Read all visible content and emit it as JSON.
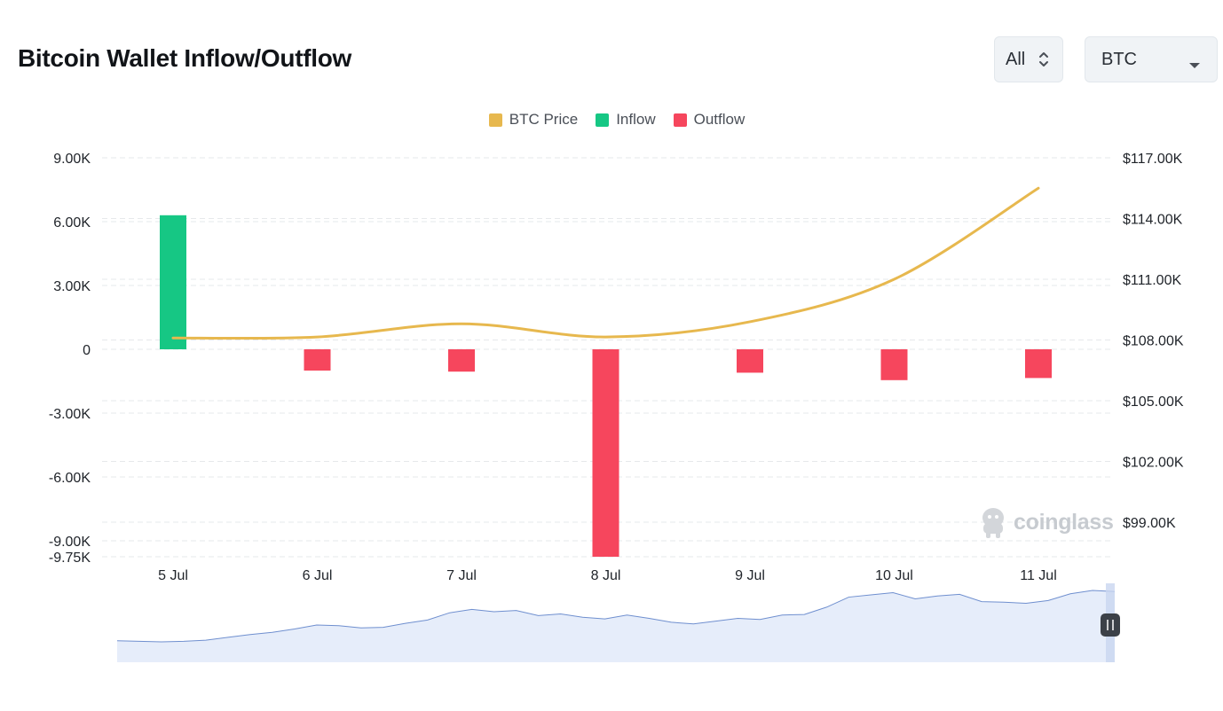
{
  "header": {
    "title": "Bitcoin Wallet Inflow/Outflow"
  },
  "controls": {
    "range_value": "All",
    "coin_value": "BTC"
  },
  "watermark": "coinglass",
  "colors": {
    "price": "#e7b84e",
    "inflow": "#16c784",
    "outflow": "#f6465d",
    "grid": "#e6e8eb",
    "axis_text": "#1f2329",
    "navigator_fill": "#e6edfa",
    "navigator_line": "#6f8fcf"
  },
  "chart_data": {
    "type": "bar",
    "title": "Bitcoin Wallet Inflow/Outflow",
    "categories": [
      "5 Jul",
      "6 Jul",
      "7 Jul",
      "8 Jul",
      "9 Jul",
      "10 Jul",
      "11 Jul"
    ],
    "legend": [
      "BTC Price",
      "Inflow",
      "Outflow"
    ],
    "legend_position": "top-center",
    "series": [
      {
        "name": "Inflow",
        "axis": "left",
        "values": [
          6300,
          0,
          0,
          0,
          0,
          0,
          0
        ]
      },
      {
        "name": "Outflow",
        "axis": "left",
        "values": [
          0,
          -1000,
          -1050,
          -9750,
          -1100,
          -1450,
          -1350
        ]
      },
      {
        "name": "BTC Price",
        "axis": "right",
        "type": "line",
        "values": [
          108100,
          108150,
          108800,
          108150,
          108900,
          111000,
          115500
        ]
      }
    ],
    "y_left": {
      "ticks": [
        9000,
        6000,
        3000,
        0,
        -3000,
        -6000,
        -9000,
        -9750
      ],
      "tick_labels": [
        "9.00K",
        "6.00K",
        "3.00K",
        "0",
        "-3.00K",
        "-6.00K",
        "-9.00K",
        "-9.75K"
      ],
      "ylim": [
        -9750,
        9000
      ]
    },
    "y_right": {
      "ticks": [
        117000,
        114000,
        111000,
        108000,
        105000,
        102000,
        99000
      ],
      "tick_labels": [
        "$117.00K",
        "$114.00K",
        "$111.00K",
        "$108.00K",
        "$105.00K",
        "$102.00K",
        "$99.00K"
      ]
    },
    "grid": true,
    "navigator": {
      "values": [
        0.1,
        0.09,
        0.08,
        0.09,
        0.11,
        0.16,
        0.21,
        0.25,
        0.31,
        0.38,
        0.37,
        0.33,
        0.34,
        0.41,
        0.47,
        0.6,
        0.66,
        0.62,
        0.64,
        0.55,
        0.58,
        0.52,
        0.49,
        0.56,
        0.5,
        0.43,
        0.4,
        0.45,
        0.5,
        0.48,
        0.56,
        0.57,
        0.7,
        0.88,
        0.92,
        0.96,
        0.85,
        0.9,
        0.93,
        0.8,
        0.79,
        0.77,
        0.82,
        0.94,
        1.0,
        0.98
      ]
    }
  }
}
